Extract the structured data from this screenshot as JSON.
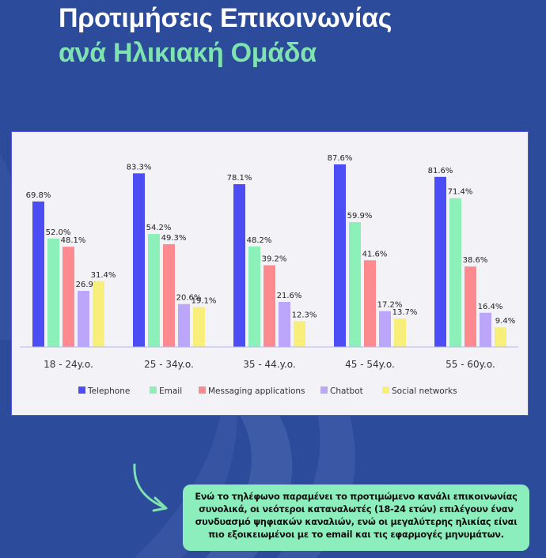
{
  "header": {
    "title_line1": "Προτιμήσεις Επικοινωνίας",
    "title_line2": "ανά Ηλικιακή Ομάδα"
  },
  "colors": {
    "background": "#2d4b9b",
    "title_accent": "#7fe3b0",
    "note_background": "#8ceebc"
  },
  "chart_data": {
    "type": "bar",
    "title": "",
    "xlabel": "",
    "ylabel": "",
    "ylim": [
      0,
      100
    ],
    "grid": false,
    "legend_position": "bottom",
    "categories": [
      "18 - 24y.o.",
      "25 - 34y.o.",
      "35 - 44.y.o.",
      "45 - 54y.o.",
      "55 - 60y.o."
    ],
    "series": [
      {
        "name": "Telephone",
        "color": "#4d4df5",
        "values": [
          69.8,
          83.3,
          78.1,
          87.6,
          81.6
        ],
        "labels": [
          "69.8%",
          "83.3%",
          "78.1%",
          "87.6%",
          "81.6%"
        ]
      },
      {
        "name": "Email",
        "color": "#8cf0b9",
        "values": [
          52.0,
          54.2,
          48.2,
          59.9,
          71.4
        ],
        "labels": [
          "52.0%",
          "54.2%",
          "48.2%",
          "59.9%",
          "71.4%"
        ]
      },
      {
        "name": "Messaging applications",
        "color": "#fd8a8f",
        "values": [
          48.1,
          49.3,
          39.2,
          41.6,
          38.6
        ],
        "labels": [
          "48.1%",
          "49.3%",
          "39.2%",
          "41.6%",
          "38.6%"
        ]
      },
      {
        "name": "Chatbot",
        "color": "#bba6fb",
        "values": [
          26.9,
          20.6,
          21.6,
          17.2,
          16.4
        ],
        "labels": [
          "26.9%",
          "20.6%",
          "21.6%",
          "17.2%",
          "16.4%"
        ]
      },
      {
        "name": "Social networks",
        "color": "#f8ee7a",
        "values": [
          31.4,
          19.1,
          12.3,
          13.7,
          9.4
        ],
        "labels": [
          "31.4%",
          "19.1%",
          "12.3%",
          "13.7%",
          "9.4%"
        ]
      }
    ]
  },
  "note": {
    "text": "Ενώ το τηλέφωνο παραμένει το προτιμώμενο κανάλι επικοινωνίας συνολικά, οι νεότεροι καταναλωτές (18-24 ετών) επιλέγουν έναν συνδυασμό ψηφιακών καναλιών, ενώ οι μεγαλύτερης ηλικίας είναι πιο εξοικειωμένοι με το email και τις εφαρμογές μηνυμάτων."
  },
  "icons": {
    "arrow": "curved-arrow-icon"
  }
}
